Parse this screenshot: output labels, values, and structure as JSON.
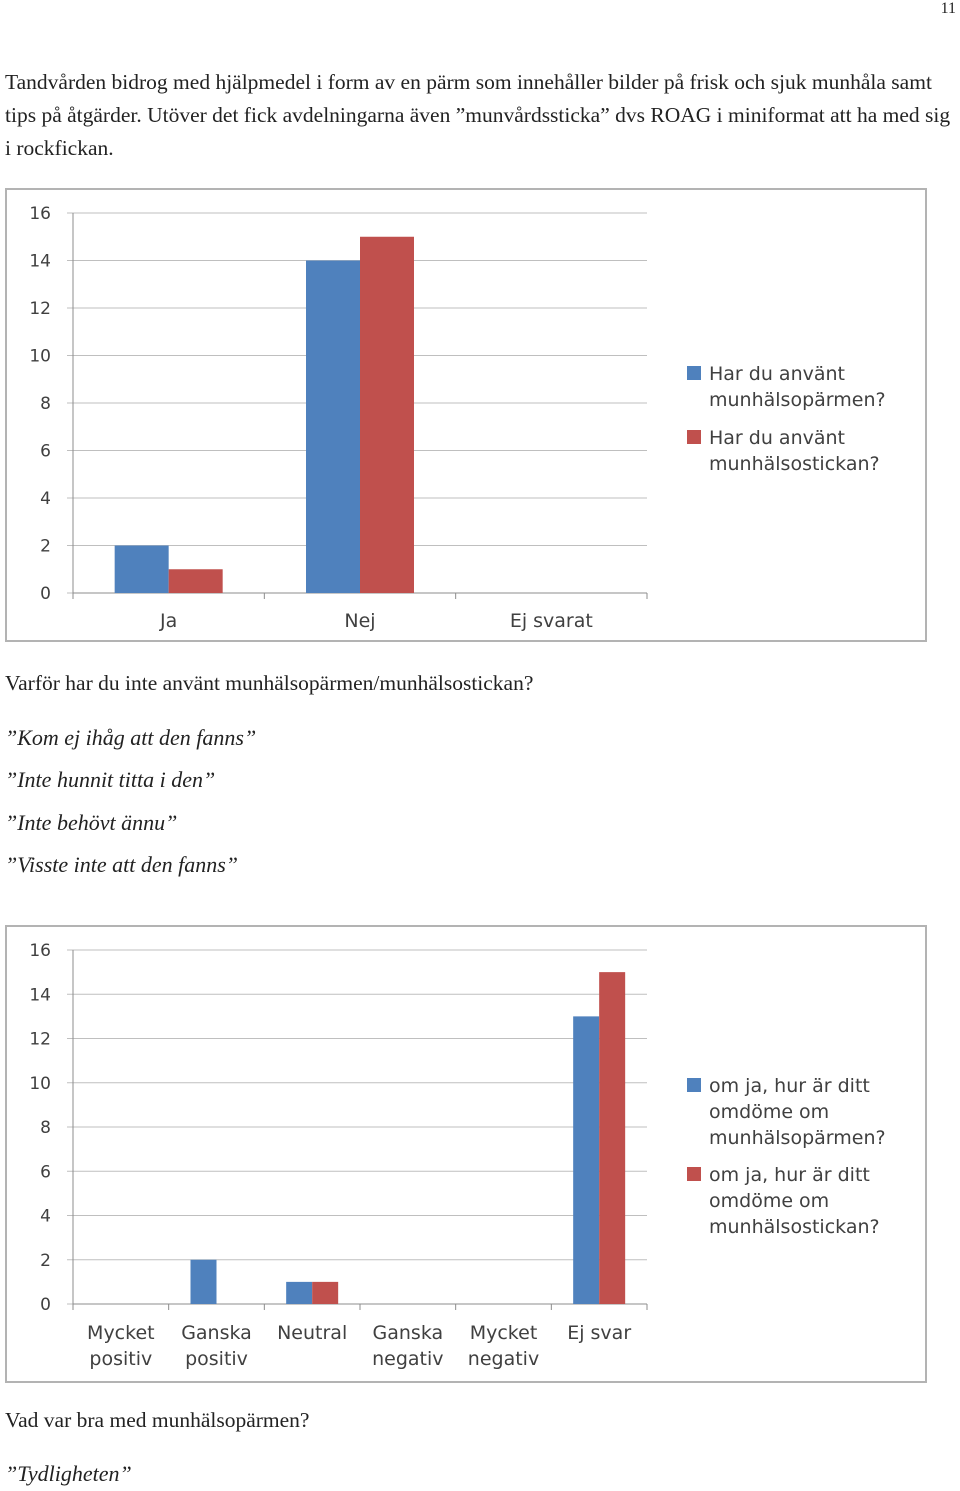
{
  "page_number": "11",
  "intro_text": "Tandvården bidrog med hjälpmedel i form av en pärm som innehåller bilder på frisk och sjuk munhåla samt tips på åtgärder. Utöver det fick avdelningarna även ”munvårdssticka” dvs ROAG i miniformat att ha med sig i rockfickan.",
  "question1": "Varför har du inte använt munhälsopärmen/munhälsostickan?",
  "answers1": [
    "”Kom ej ihåg att den fanns”",
    "”Inte hunnit titta i den”",
    "”Inte behövt ännu”",
    "”Visste inte att den fanns”"
  ],
  "question2": "Vad var bra med munhälsopärmen?",
  "answers2": [
    "”Tydligheten”"
  ],
  "colors": {
    "series_blue": "#4f81bd",
    "series_red": "#c0504d",
    "grid": "#bfbfbf",
    "axis_text": "#404040"
  },
  "chart_data": [
    {
      "type": "bar",
      "categories": [
        [
          "Ja"
        ],
        [
          "Nej"
        ],
        [
          "Ej svarat"
        ]
      ],
      "series": [
        {
          "name": [
            "Har du använt",
            "munhälsopärmen?"
          ],
          "values": [
            2,
            14,
            0
          ]
        },
        {
          "name": [
            "Har du använt",
            "munhälsostickan?"
          ],
          "values": [
            1,
            15,
            0
          ]
        }
      ],
      "ylim": [
        0,
        16
      ],
      "yticks": [
        0,
        2,
        4,
        6,
        8,
        10,
        12,
        14,
        16
      ],
      "grid": true,
      "legend": "right"
    },
    {
      "type": "bar",
      "categories": [
        [
          "Mycket",
          "positiv"
        ],
        [
          "Ganska",
          "positiv"
        ],
        [
          "Neutral"
        ],
        [
          "Ganska",
          "negativ"
        ],
        [
          "Mycket",
          "negativ"
        ],
        [
          "Ej svar"
        ]
      ],
      "series": [
        {
          "name": [
            "om ja, hur är ditt",
            "omdöme om",
            "munhälsopärmen?"
          ],
          "values": [
            0,
            2,
            1,
            0,
            0,
            13
          ]
        },
        {
          "name": [
            "om ja, hur är ditt",
            "omdöme om",
            "munhälsostickan?"
          ],
          "values": [
            0,
            0,
            1,
            0,
            0,
            15
          ]
        }
      ],
      "ylim": [
        0,
        16
      ],
      "yticks": [
        0,
        2,
        4,
        6,
        8,
        10,
        12,
        14,
        16
      ],
      "grid": true,
      "legend": "right"
    }
  ]
}
